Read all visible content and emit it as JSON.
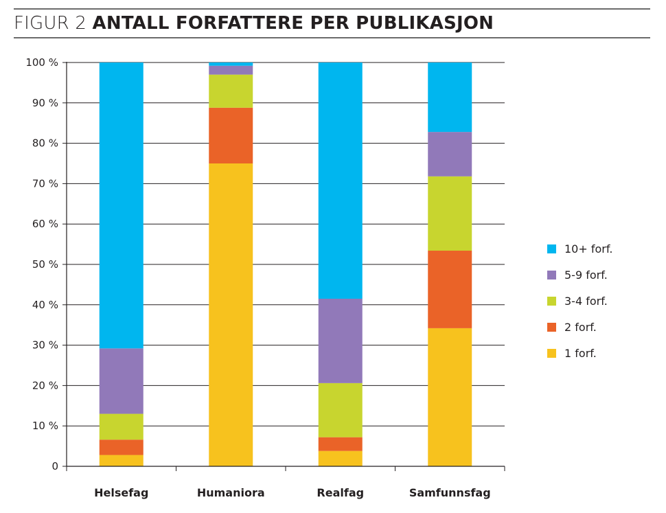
{
  "figure": {
    "prefix": "FIGUR 2",
    "title": "ANTALL FORFATTERE PER PUBLIKASJON"
  },
  "chart_data": {
    "type": "bar",
    "stacked": true,
    "categories": [
      "Helsefag",
      "Humaniora",
      "Realfag",
      "Samfunnsfag"
    ],
    "series": [
      {
        "name": "1 forf.",
        "color": "#f7c21e",
        "values": [
          2.8,
          75.0,
          3.8,
          34.2
        ]
      },
      {
        "name": "2 forf.",
        "color": "#ea6328",
        "values": [
          3.8,
          13.8,
          3.4,
          19.2
        ]
      },
      {
        "name": "3-4 forf.",
        "color": "#c8d52f",
        "values": [
          6.4,
          8.2,
          13.4,
          18.4
        ]
      },
      {
        "name": "5-9 forf.",
        "color": "#9179b9",
        "values": [
          16.2,
          2.2,
          20.9,
          11.0
        ]
      },
      {
        "name": "10+ forf.",
        "color": "#00b6ef",
        "values": [
          70.8,
          0.8,
          58.5,
          17.2
        ]
      }
    ],
    "yticks": [
      "0",
      "10 %",
      "20 %",
      "30 %",
      "40 %",
      "50 %",
      "60 %",
      "70 %",
      "80 %",
      "90 %",
      "100 %"
    ],
    "ylim": [
      0,
      100
    ],
    "grid": true,
    "legend_position": "right"
  }
}
